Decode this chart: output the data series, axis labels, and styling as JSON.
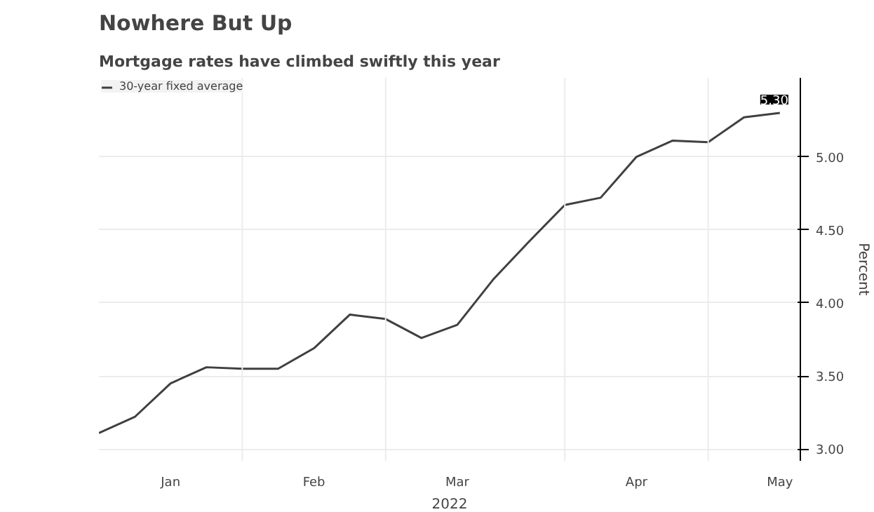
{
  "chart_data": {
    "type": "line",
    "title": "Nowhere But Up",
    "subtitle": "Mortgage rates have climbed swiftly this year",
    "xlabel": "2022",
    "ylabel": "Percent",
    "x": [
      "2021-12-30",
      "2022-01-06",
      "2022-01-13",
      "2022-01-20",
      "2022-01-27",
      "2022-02-03",
      "2022-02-10",
      "2022-02-17",
      "2022-02-24",
      "2022-03-03",
      "2022-03-10",
      "2022-03-17",
      "2022-03-24",
      "2022-03-31",
      "2022-04-07",
      "2022-04-14",
      "2022-04-21",
      "2022-04-28",
      "2022-05-05",
      "2022-05-12"
    ],
    "series": [
      {
        "name": "30-year fixed average",
        "color": "#404040",
        "values": [
          3.11,
          3.22,
          3.45,
          3.56,
          3.55,
          3.55,
          3.69,
          3.92,
          3.89,
          3.76,
          3.85,
          4.16,
          4.42,
          4.67,
          4.72,
          5.0,
          5.11,
          5.1,
          5.27,
          5.3
        ],
        "value_labels": [
          null,
          null,
          null,
          null,
          null,
          null,
          null,
          null,
          null,
          null,
          null,
          null,
          null,
          null,
          null,
          null,
          null,
          null,
          null,
          "5.30"
        ]
      }
    ],
    "xlim": [
      "2021-12-30",
      "2022-05-16"
    ],
    "ylim": [
      2.92,
      5.54
    ],
    "xticks": [
      {
        "value": "2022-01-13",
        "label": "Jan"
      },
      {
        "value": "2022-01-27",
        "label": null
      },
      {
        "value": "2022-02-10",
        "label": "Feb"
      },
      {
        "value": "2022-02-24",
        "label": null
      },
      {
        "value": "2022-03-10",
        "label": "Mar"
      },
      {
        "value": "2022-03-31",
        "label": null
      },
      {
        "value": "2022-04-14",
        "label": "Apr"
      },
      {
        "value": "2022-04-28",
        "label": null
      },
      {
        "value": "2022-05-12",
        "label": "May"
      }
    ],
    "yticks": [
      {
        "value": 3,
        "label": "3.00"
      },
      {
        "value": 3.5,
        "label": "3.50"
      },
      {
        "value": 4,
        "label": "4.00"
      },
      {
        "value": 4.5,
        "label": "4.50"
      },
      {
        "value": 5,
        "label": "5.00"
      }
    ],
    "grid": true,
    "legend": "top left",
    "marker": "none",
    "line_style": "solid"
  }
}
